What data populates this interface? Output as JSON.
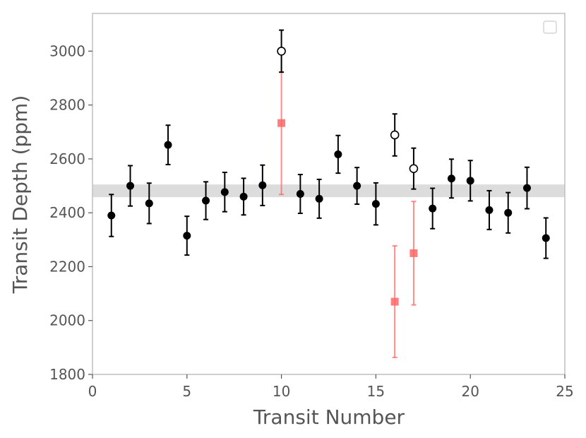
{
  "chart_data": {
    "type": "scatter",
    "title": "",
    "xlabel": "Transit Number",
    "ylabel": "Transit Depth (ppm)",
    "xlim": [
      0,
      25
    ],
    "ylim": [
      1800,
      3140
    ],
    "xticks": [
      0,
      5,
      10,
      15,
      20,
      25
    ],
    "yticks": [
      1800,
      2000,
      2200,
      2400,
      2600,
      2800,
      3000
    ],
    "grid": false,
    "legend": {
      "placement": "top-right",
      "entries": []
    },
    "band": {
      "y_low": 2458,
      "y_high": 2505,
      "color": "#dcdcdc"
    },
    "series": [
      {
        "marker": "filled-circle",
        "color": "#000000",
        "points": [
          {
            "x": 1,
            "y": 2390,
            "err": 78
          },
          {
            "x": 2,
            "y": 2500,
            "err": 75
          },
          {
            "x": 3,
            "y": 2435,
            "err": 75
          },
          {
            "x": 4,
            "y": 2652,
            "err": 73
          },
          {
            "x": 5,
            "y": 2315,
            "err": 72
          },
          {
            "x": 6,
            "y": 2445,
            "err": 70
          },
          {
            "x": 7,
            "y": 2477,
            "err": 73
          },
          {
            "x": 8,
            "y": 2460,
            "err": 68
          },
          {
            "x": 9,
            "y": 2502,
            "err": 75
          },
          {
            "x": 11,
            "y": 2470,
            "err": 72
          },
          {
            "x": 12,
            "y": 2452,
            "err": 72
          },
          {
            "x": 13,
            "y": 2617,
            "err": 70
          },
          {
            "x": 14,
            "y": 2500,
            "err": 68
          },
          {
            "x": 15,
            "y": 2433,
            "err": 78
          },
          {
            "x": 18,
            "y": 2416,
            "err": 75
          },
          {
            "x": 19,
            "y": 2527,
            "err": 72
          },
          {
            "x": 20,
            "y": 2519,
            "err": 75
          },
          {
            "x": 21,
            "y": 2410,
            "err": 72
          },
          {
            "x": 22,
            "y": 2400,
            "err": 75
          },
          {
            "x": 23,
            "y": 2492,
            "err": 77
          },
          {
            "x": 24,
            "y": 2306,
            "err": 75
          }
        ]
      },
      {
        "marker": "open-circle",
        "color": "#000000",
        "points": [
          {
            "x": 10,
            "y": 3000,
            "err": 78
          },
          {
            "x": 16,
            "y": 2689,
            "err": 78
          },
          {
            "x": 17,
            "y": 2564,
            "err": 76
          }
        ]
      },
      {
        "marker": "square",
        "color": "#ff6666",
        "points": [
          {
            "x": 10,
            "y": 2733,
            "err": 265
          },
          {
            "x": 16,
            "y": 2070,
            "err": 207
          },
          {
            "x": 17,
            "y": 2250,
            "err": 192
          }
        ]
      }
    ]
  }
}
